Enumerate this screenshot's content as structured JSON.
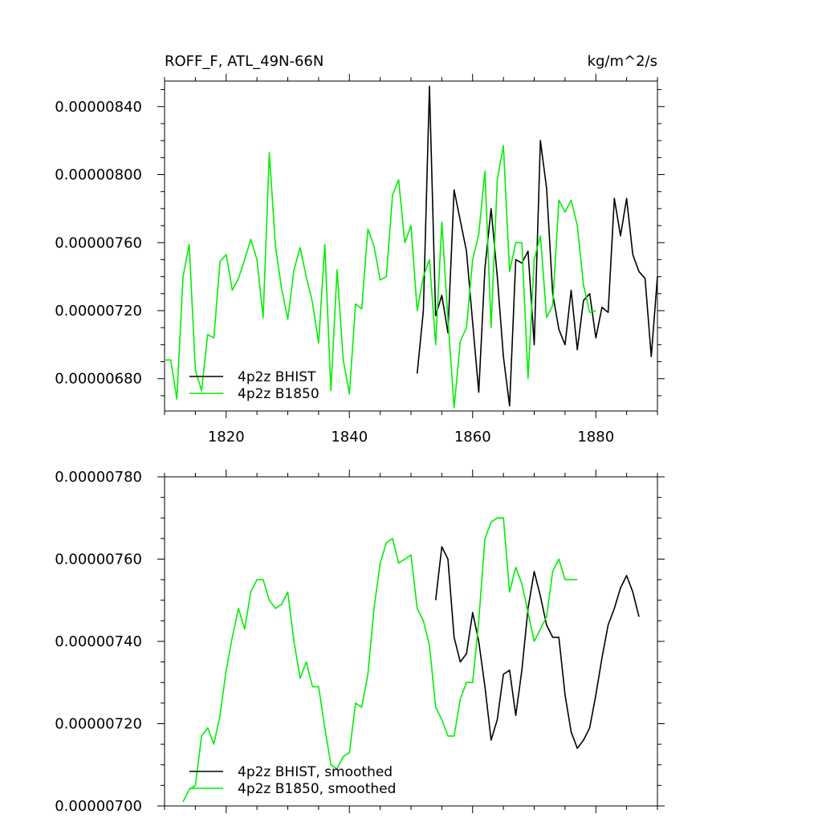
{
  "header": {
    "left_title": "ROFF_F, ATL_49N-66N",
    "right_title": "kg/m^2/s"
  },
  "chart_data": [
    {
      "type": "line",
      "title": "ROFF_F, ATL_49N-66N",
      "units": "kg/m^2/s",
      "xlim": [
        1810,
        1890
      ],
      "ylim": [
        6.61e-06,
        8.55e-06
      ],
      "x_ticks": [
        1820,
        1840,
        1860,
        1880
      ],
      "x_tick_labels": [
        "1820",
        "1840",
        "1860",
        "1880"
      ],
      "y_ticks": [
        6.8e-06,
        7.2e-06,
        7.6e-06,
        8e-06,
        8.4e-06
      ],
      "y_tick_labels": [
        "0.00000680",
        "0.00000720",
        "0.00000760",
        "0.00000800",
        "0.00000840"
      ],
      "legend_position": "bottom-left",
      "series": [
        {
          "name": "4p2z BHIST",
          "color": "#000000",
          "x": [
            1851,
            1852,
            1853,
            1854,
            1855,
            1856,
            1857,
            1858,
            1859,
            1860,
            1861,
            1862,
            1863,
            1864,
            1865,
            1866,
            1867,
            1868,
            1869,
            1870,
            1871,
            1872,
            1873,
            1874,
            1875,
            1876,
            1877,
            1878,
            1879,
            1880,
            1881,
            1882,
            1883,
            1884,
            1885,
            1886,
            1887,
            1888,
            1889,
            1890
          ],
          "y": [
            6.83e-06,
            7.2e-06,
            8.52e-06,
            7.17e-06,
            7.29e-06,
            7.07e-06,
            7.91e-06,
            7.73e-06,
            7.55e-06,
            7.13e-06,
            6.72e-06,
            7.45e-06,
            7.8e-06,
            7.4e-06,
            6.93e-06,
            6.64e-06,
            7.5e-06,
            7.48e-06,
            7.55e-06,
            7e-06,
            8.2e-06,
            7.92e-06,
            7.3e-06,
            7.09e-06,
            7e-06,
            7.32e-06,
            6.97e-06,
            7.26e-06,
            7.3e-06,
            7.04e-06,
            7.22e-06,
            7.19e-06,
            7.86e-06,
            7.64e-06,
            7.86e-06,
            7.53e-06,
            7.43e-06,
            7.39e-06,
            6.93e-06,
            7.4e-06
          ]
        },
        {
          "name": "4p2z B1850",
          "color": "#00ee00",
          "x": [
            1810,
            1811,
            1812,
            1813,
            1814,
            1815,
            1816,
            1817,
            1818,
            1819,
            1820,
            1821,
            1822,
            1823,
            1824,
            1825,
            1826,
            1827,
            1828,
            1829,
            1830,
            1831,
            1832,
            1833,
            1834,
            1835,
            1836,
            1837,
            1838,
            1839,
            1840,
            1841,
            1842,
            1843,
            1844,
            1845,
            1846,
            1847,
            1848,
            1849,
            1850,
            1851,
            1852,
            1853,
            1854,
            1855,
            1856,
            1857,
            1858,
            1859,
            1860,
            1861,
            1862,
            1863,
            1864,
            1865,
            1866,
            1867,
            1868,
            1869,
            1870,
            1871,
            1872,
            1873,
            1874,
            1875,
            1876,
            1877,
            1878,
            1879,
            1880
          ],
          "y": [
            6.91e-06,
            6.91e-06,
            6.68e-06,
            7.4e-06,
            7.59e-06,
            6.85e-06,
            6.73e-06,
            7.06e-06,
            7.04e-06,
            7.49e-06,
            7.53e-06,
            7.32e-06,
            7.39e-06,
            7.5e-06,
            7.62e-06,
            7.5e-06,
            7.16e-06,
            8.13e-06,
            7.58e-06,
            7.33e-06,
            7.15e-06,
            7.44e-06,
            7.57e-06,
            7.4e-06,
            7.25e-06,
            7.01e-06,
            7.59e-06,
            6.73e-06,
            7.44e-06,
            6.91e-06,
            6.71e-06,
            7.24e-06,
            7.21e-06,
            7.68e-06,
            7.58e-06,
            7.38e-06,
            7.4e-06,
            7.88e-06,
            7.97e-06,
            7.6e-06,
            7.7e-06,
            7.2e-06,
            7.4e-06,
            7.5e-06,
            7e-06,
            7.72e-06,
            7.15e-06,
            6.63e-06,
            7.02e-06,
            7.1e-06,
            7.5e-06,
            7.65e-06,
            8.02e-06,
            7.1e-06,
            7.97e-06,
            8.17e-06,
            7.43e-06,
            7.6e-06,
            7.6e-06,
            6.8e-06,
            7.5e-06,
            7.64e-06,
            7.16e-06,
            7.23e-06,
            7.85e-06,
            7.78e-06,
            7.85e-06,
            7.7e-06,
            7.35e-06,
            7.19e-06,
            7.2e-06
          ]
        }
      ]
    },
    {
      "type": "line",
      "xlim": [
        1810,
        1890
      ],
      "ylim": [
        7e-06,
        7.8e-06
      ],
      "x_ticks": [
        1820,
        1840,
        1860,
        1880
      ],
      "y_ticks": [
        7e-06,
        7.2e-06,
        7.4e-06,
        7.6e-06,
        7.8e-06
      ],
      "y_tick_labels": [
        "0.00000700",
        "0.00000720",
        "0.00000740",
        "0.00000760",
        "0.00000780"
      ],
      "legend_position": "bottom-left",
      "series": [
        {
          "name": "4p2z BHIST, smoothed",
          "color": "#000000",
          "x": [
            1854,
            1855,
            1856,
            1857,
            1858,
            1859,
            1860,
            1861,
            1862,
            1863,
            1864,
            1865,
            1866,
            1867,
            1868,
            1869,
            1870,
            1871,
            1872,
            1873,
            1874,
            1875,
            1876,
            1877,
            1878,
            1879,
            1880,
            1881,
            1882,
            1883,
            1884,
            1885,
            1886,
            1887
          ],
          "y": [
            7.5e-06,
            7.63e-06,
            7.6e-06,
            7.41e-06,
            7.35e-06,
            7.37e-06,
            7.47e-06,
            7.4e-06,
            7.29e-06,
            7.16e-06,
            7.21e-06,
            7.32e-06,
            7.33e-06,
            7.22e-06,
            7.33e-06,
            7.48e-06,
            7.57e-06,
            7.51e-06,
            7.44e-06,
            7.41e-06,
            7.41e-06,
            7.27e-06,
            7.18e-06,
            7.14e-06,
            7.16e-06,
            7.19e-06,
            7.27e-06,
            7.36e-06,
            7.44e-06,
            7.48e-06,
            7.53e-06,
            7.56e-06,
            7.52e-06,
            7.46e-06
          ]
        },
        {
          "name": "4p2z B1850, smoothed",
          "color": "#00ee00",
          "x": [
            1813,
            1814,
            1815,
            1816,
            1817,
            1818,
            1819,
            1820,
            1821,
            1822,
            1823,
            1824,
            1825,
            1826,
            1827,
            1828,
            1829,
            1830,
            1831,
            1832,
            1833,
            1834,
            1835,
            1836,
            1837,
            1838,
            1839,
            1840,
            1841,
            1842,
            1843,
            1844,
            1845,
            1846,
            1847,
            1848,
            1849,
            1850,
            1851,
            1852,
            1853,
            1854,
            1855,
            1856,
            1857,
            1858,
            1859,
            1860,
            1861,
            1862,
            1863,
            1864,
            1865,
            1866,
            1867,
            1868,
            1869,
            1870,
            1871,
            1872,
            1873,
            1874,
            1875,
            1876,
            1877
          ],
          "y": [
            7.01e-06,
            7.04e-06,
            7.05e-06,
            7.17e-06,
            7.19e-06,
            7.15e-06,
            7.22e-06,
            7.33e-06,
            7.41e-06,
            7.48e-06,
            7.43e-06,
            7.52e-06,
            7.55e-06,
            7.55e-06,
            7.5e-06,
            7.48e-06,
            7.49e-06,
            7.52e-06,
            7.4e-06,
            7.31e-06,
            7.35e-06,
            7.29e-06,
            7.29e-06,
            7.19e-06,
            7.1e-06,
            7.09e-06,
            7.12e-06,
            7.13e-06,
            7.25e-06,
            7.24e-06,
            7.32e-06,
            7.48e-06,
            7.59e-06,
            7.64e-06,
            7.65e-06,
            7.59e-06,
            7.6e-06,
            7.61e-06,
            7.48e-06,
            7.45e-06,
            7.39e-06,
            7.24e-06,
            7.21e-06,
            7.17e-06,
            7.17e-06,
            7.26e-06,
            7.3e-06,
            7.3e-06,
            7.45e-06,
            7.65e-06,
            7.69e-06,
            7.7e-06,
            7.7e-06,
            7.52e-06,
            7.58e-06,
            7.54e-06,
            7.47e-06,
            7.4e-06,
            7.43e-06,
            7.46e-06,
            7.57e-06,
            7.6e-06,
            7.55e-06,
            7.55e-06,
            7.55e-06
          ]
        }
      ]
    }
  ]
}
